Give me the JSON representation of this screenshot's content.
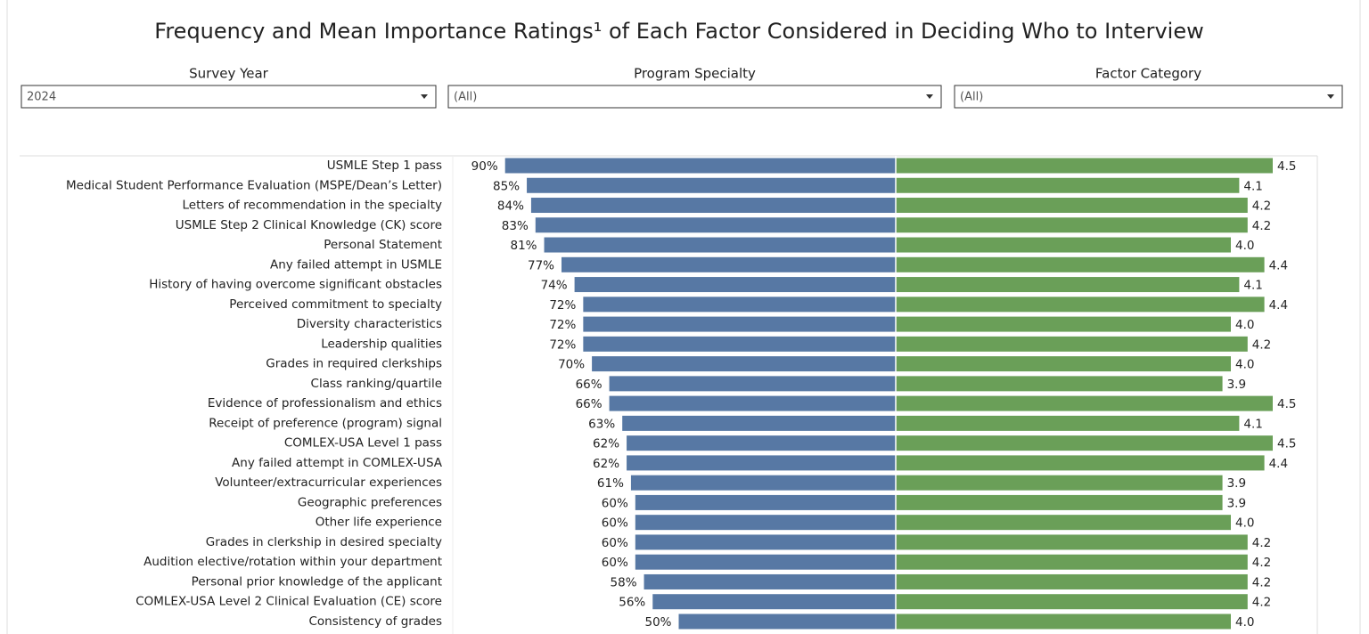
{
  "title": "Frequency and Mean Importance Ratings¹ of Each Factor Considered in Deciding Who to Interview",
  "filters": [
    {
      "label": "Survey Year",
      "value": "2024"
    },
    {
      "label": "Program Specialty",
      "value": "(All)"
    },
    {
      "label": "Factor Category",
      "value": "(All)"
    }
  ],
  "chart_data": {
    "type": "diverging-bar",
    "categories": [
      "USMLE Step 1 pass",
      "Medical Student Performance Evaluation (MSPE/Dean’s Letter)",
      "Letters of recommendation in the specialty",
      "USMLE Step 2 Clinical Knowledge (CK) score",
      "Personal Statement",
      "Any failed attempt in USMLE",
      "History of having overcome significant obstacles",
      "Perceived commitment to specialty",
      "Diversity characteristics",
      "Leadership qualities",
      "Grades in required clerkships",
      "Class ranking/quartile",
      "Evidence of professionalism and ethics",
      "Receipt of preference (program) signal",
      "COMLEX-USA Level 1 pass",
      "Any failed attempt in COMLEX-USA",
      "Volunteer/extracurricular experiences",
      "Geographic preferences",
      "Other life experience",
      "Grades in clerkship in desired specialty",
      "Audition elective/rotation within your department",
      "Personal prior knowledge of the applicant",
      "COMLEX-USA Level 2 Clinical Evaluation (CE) score",
      "Consistency of grades"
    ],
    "series": [
      {
        "color": "#5778a4",
        "xlim": [
          0,
          100
        ],
        "values": [
          90,
          85,
          84,
          83,
          81,
          77,
          74,
          72,
          72,
          72,
          70,
          66,
          66,
          63,
          62,
          62,
          61,
          60,
          60,
          60,
          60,
          58,
          56,
          50
        ],
        "value_labels": [
          "90%",
          "85%",
          "84%",
          "83%",
          "81%",
          "77%",
          "74%",
          "72%",
          "72%",
          "72%",
          "70%",
          "66%",
          "66%",
          "63%",
          "62%",
          "62%",
          "61%",
          "60%",
          "60%",
          "60%",
          "60%",
          "58%",
          "56%",
          "50%"
        ]
      },
      {
        "color": "#6a9f58",
        "xlim": [
          0,
          5
        ],
        "values": [
          4.5,
          4.1,
          4.2,
          4.2,
          4.0,
          4.4,
          4.1,
          4.4,
          4.0,
          4.2,
          4.0,
          3.9,
          4.5,
          4.1,
          4.5,
          4.4,
          3.9,
          3.9,
          4.0,
          4.2,
          4.2,
          4.2,
          4.2,
          4.0
        ],
        "value_labels": [
          "4.5",
          "4.1",
          "4.2",
          "4.2",
          "4.0",
          "4.4",
          "4.1",
          "4.4",
          "4.0",
          "4.2",
          "4.0",
          "3.9",
          "4.5",
          "4.1",
          "4.5",
          "4.4",
          "3.9",
          "3.9",
          "4.0",
          "4.2",
          "4.2",
          "4.2",
          "4.2",
          "4.0"
        ]
      }
    ]
  }
}
